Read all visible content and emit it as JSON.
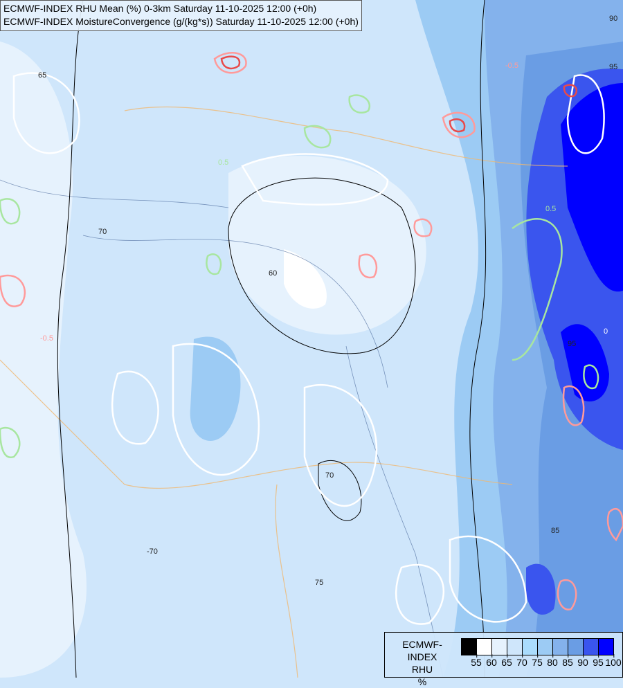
{
  "header": {
    "line1": "ECMWF-INDEX RHU Mean (%) 0-3km Saturday 11-10-2025 12:00 (+0h)",
    "line2": "ECMWF-INDEX MoistureConvergence (g/(kg*s)) Saturday 11-10-2025 12:00 (+0h)"
  },
  "legend": {
    "title1": "ECMWF-INDEX",
    "title2": "RHU",
    "unit": "%",
    "colors": [
      "#000000",
      "#ffffff",
      "#e6f2fd",
      "#cfe6fb",
      "#aadcfd",
      "#9ccbf4",
      "#84b2ec",
      "#6a9de4",
      "#3a55ee",
      "#0000ff"
    ],
    "ticks": [
      "55",
      "60",
      "65",
      "70",
      "75",
      "80",
      "85",
      "90",
      "95",
      "100"
    ]
  },
  "contour_labels": [
    "65",
    "70",
    "60",
    "-0.5",
    "0.5",
    "75",
    "85",
    "90",
    "95",
    "0",
    "-70",
    "70",
    "-0.5",
    "0.5",
    "95"
  ],
  "colors": {
    "positive_convergence": "#ff9a9a",
    "negative_convergence": "#a8e6a0",
    "rhu_contour": "#ffffff",
    "border": "#f0b870",
    "river": "#3a5a90"
  }
}
